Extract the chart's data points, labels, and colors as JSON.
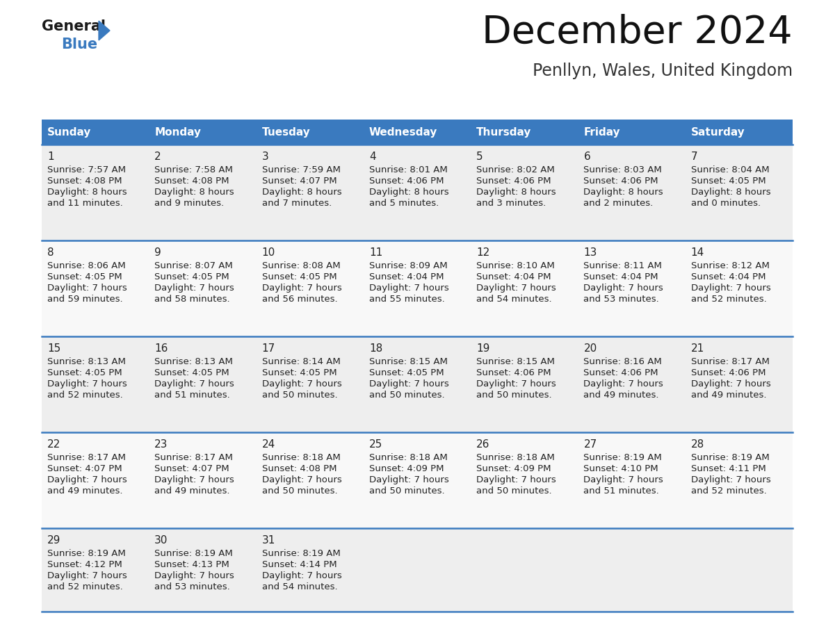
{
  "title": "December 2024",
  "subtitle": "Penllyn, Wales, United Kingdom",
  "days_of_week": [
    "Sunday",
    "Monday",
    "Tuesday",
    "Wednesday",
    "Thursday",
    "Friday",
    "Saturday"
  ],
  "header_bg": "#3a7abf",
  "header_text": "#ffffff",
  "cell_bg_odd": "#eeeeee",
  "cell_bg_even": "#f8f8f8",
  "row_line_color": "#3a7abf",
  "text_color": "#222222",
  "days": [
    {
      "day": 1,
      "col": 0,
      "row": 0,
      "sunrise": "7:57 AM",
      "sunset": "4:08 PM",
      "daylight_h": "8 hours",
      "daylight_m": "11 minutes."
    },
    {
      "day": 2,
      "col": 1,
      "row": 0,
      "sunrise": "7:58 AM",
      "sunset": "4:08 PM",
      "daylight_h": "8 hours",
      "daylight_m": "9 minutes."
    },
    {
      "day": 3,
      "col": 2,
      "row": 0,
      "sunrise": "7:59 AM",
      "sunset": "4:07 PM",
      "daylight_h": "8 hours",
      "daylight_m": "7 minutes."
    },
    {
      "day": 4,
      "col": 3,
      "row": 0,
      "sunrise": "8:01 AM",
      "sunset": "4:06 PM",
      "daylight_h": "8 hours",
      "daylight_m": "5 minutes."
    },
    {
      "day": 5,
      "col": 4,
      "row": 0,
      "sunrise": "8:02 AM",
      "sunset": "4:06 PM",
      "daylight_h": "8 hours",
      "daylight_m": "3 minutes."
    },
    {
      "day": 6,
      "col": 5,
      "row": 0,
      "sunrise": "8:03 AM",
      "sunset": "4:06 PM",
      "daylight_h": "8 hours",
      "daylight_m": "2 minutes."
    },
    {
      "day": 7,
      "col": 6,
      "row": 0,
      "sunrise": "8:04 AM",
      "sunset": "4:05 PM",
      "daylight_h": "8 hours",
      "daylight_m": "0 minutes."
    },
    {
      "day": 8,
      "col": 0,
      "row": 1,
      "sunrise": "8:06 AM",
      "sunset": "4:05 PM",
      "daylight_h": "7 hours",
      "daylight_m": "59 minutes."
    },
    {
      "day": 9,
      "col": 1,
      "row": 1,
      "sunrise": "8:07 AM",
      "sunset": "4:05 PM",
      "daylight_h": "7 hours",
      "daylight_m": "58 minutes."
    },
    {
      "day": 10,
      "col": 2,
      "row": 1,
      "sunrise": "8:08 AM",
      "sunset": "4:05 PM",
      "daylight_h": "7 hours",
      "daylight_m": "56 minutes."
    },
    {
      "day": 11,
      "col": 3,
      "row": 1,
      "sunrise": "8:09 AM",
      "sunset": "4:04 PM",
      "daylight_h": "7 hours",
      "daylight_m": "55 minutes."
    },
    {
      "day": 12,
      "col": 4,
      "row": 1,
      "sunrise": "8:10 AM",
      "sunset": "4:04 PM",
      "daylight_h": "7 hours",
      "daylight_m": "54 minutes."
    },
    {
      "day": 13,
      "col": 5,
      "row": 1,
      "sunrise": "8:11 AM",
      "sunset": "4:04 PM",
      "daylight_h": "7 hours",
      "daylight_m": "53 minutes."
    },
    {
      "day": 14,
      "col": 6,
      "row": 1,
      "sunrise": "8:12 AM",
      "sunset": "4:04 PM",
      "daylight_h": "7 hours",
      "daylight_m": "52 minutes."
    },
    {
      "day": 15,
      "col": 0,
      "row": 2,
      "sunrise": "8:13 AM",
      "sunset": "4:05 PM",
      "daylight_h": "7 hours",
      "daylight_m": "52 minutes."
    },
    {
      "day": 16,
      "col": 1,
      "row": 2,
      "sunrise": "8:13 AM",
      "sunset": "4:05 PM",
      "daylight_h": "7 hours",
      "daylight_m": "51 minutes."
    },
    {
      "day": 17,
      "col": 2,
      "row": 2,
      "sunrise": "8:14 AM",
      "sunset": "4:05 PM",
      "daylight_h": "7 hours",
      "daylight_m": "50 minutes."
    },
    {
      "day": 18,
      "col": 3,
      "row": 2,
      "sunrise": "8:15 AM",
      "sunset": "4:05 PM",
      "daylight_h": "7 hours",
      "daylight_m": "50 minutes."
    },
    {
      "day": 19,
      "col": 4,
      "row": 2,
      "sunrise": "8:15 AM",
      "sunset": "4:06 PM",
      "daylight_h": "7 hours",
      "daylight_m": "50 minutes."
    },
    {
      "day": 20,
      "col": 5,
      "row": 2,
      "sunrise": "8:16 AM",
      "sunset": "4:06 PM",
      "daylight_h": "7 hours",
      "daylight_m": "49 minutes."
    },
    {
      "day": 21,
      "col": 6,
      "row": 2,
      "sunrise": "8:17 AM",
      "sunset": "4:06 PM",
      "daylight_h": "7 hours",
      "daylight_m": "49 minutes."
    },
    {
      "day": 22,
      "col": 0,
      "row": 3,
      "sunrise": "8:17 AM",
      "sunset": "4:07 PM",
      "daylight_h": "7 hours",
      "daylight_m": "49 minutes."
    },
    {
      "day": 23,
      "col": 1,
      "row": 3,
      "sunrise": "8:17 AM",
      "sunset": "4:07 PM",
      "daylight_h": "7 hours",
      "daylight_m": "49 minutes."
    },
    {
      "day": 24,
      "col": 2,
      "row": 3,
      "sunrise": "8:18 AM",
      "sunset": "4:08 PM",
      "daylight_h": "7 hours",
      "daylight_m": "50 minutes."
    },
    {
      "day": 25,
      "col": 3,
      "row": 3,
      "sunrise": "8:18 AM",
      "sunset": "4:09 PM",
      "daylight_h": "7 hours",
      "daylight_m": "50 minutes."
    },
    {
      "day": 26,
      "col": 4,
      "row": 3,
      "sunrise": "8:18 AM",
      "sunset": "4:09 PM",
      "daylight_h": "7 hours",
      "daylight_m": "50 minutes."
    },
    {
      "day": 27,
      "col": 5,
      "row": 3,
      "sunrise": "8:19 AM",
      "sunset": "4:10 PM",
      "daylight_h": "7 hours",
      "daylight_m": "51 minutes."
    },
    {
      "day": 28,
      "col": 6,
      "row": 3,
      "sunrise": "8:19 AM",
      "sunset": "4:11 PM",
      "daylight_h": "7 hours",
      "daylight_m": "52 minutes."
    },
    {
      "day": 29,
      "col": 0,
      "row": 4,
      "sunrise": "8:19 AM",
      "sunset": "4:12 PM",
      "daylight_h": "7 hours",
      "daylight_m": "52 minutes."
    },
    {
      "day": 30,
      "col": 1,
      "row": 4,
      "sunrise": "8:19 AM",
      "sunset": "4:13 PM",
      "daylight_h": "7 hours",
      "daylight_m": "53 minutes."
    },
    {
      "day": 31,
      "col": 2,
      "row": 4,
      "sunrise": "8:19 AM",
      "sunset": "4:14 PM",
      "daylight_h": "7 hours",
      "daylight_m": "54 minutes."
    }
  ]
}
